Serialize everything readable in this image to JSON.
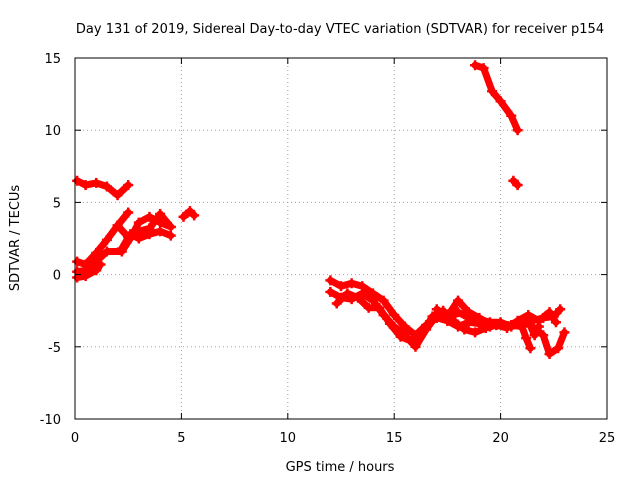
{
  "chart_data": {
    "type": "scatter",
    "title": "Day 131 of 2019, Sidereal Day-to-day VTEC variation (SDTVAR) for receiver p154",
    "xlabel": "GPS time / hours",
    "ylabel": "SDTVAR / TECUs",
    "xlim": [
      0,
      25
    ],
    "ylim": [
      -10,
      15
    ],
    "grid": true,
    "xticks": [
      "0",
      "5",
      "10",
      "15",
      "20",
      "25"
    ],
    "yticks": [
      "15",
      "10",
      "5",
      "0",
      "-5",
      "-10"
    ],
    "series": [
      {
        "name": "SDTVAR",
        "color": "#ff0000",
        "segments": [
          [
            [
              0.1,
              6.5
            ],
            [
              0.5,
              6.2
            ],
            [
              1.0,
              6.35
            ],
            [
              1.5,
              6.1
            ],
            [
              2.0,
              5.5
            ],
            [
              2.5,
              6.2
            ]
          ],
          [
            [
              0.1,
              0.9
            ],
            [
              0.5,
              0.7
            ],
            [
              1.0,
              1.5
            ],
            [
              1.5,
              2.4
            ],
            [
              2.0,
              3.4
            ],
            [
              2.5,
              4.3
            ]
          ],
          [
            [
              0.1,
              0.2
            ],
            [
              0.5,
              0.3
            ],
            [
              1.0,
              0.9
            ],
            [
              1.5,
              1.6
            ],
            [
              2.2,
              1.6
            ],
            [
              2.6,
              2.5
            ],
            [
              3.0,
              3.6
            ],
            [
              3.5,
              4.0
            ],
            [
              4.0,
              3.6
            ],
            [
              4.5,
              3.3
            ]
          ],
          [
            [
              0.1,
              -0.2
            ],
            [
              0.5,
              -0.1
            ],
            [
              1.0,
              0.3
            ],
            [
              1.2,
              0.7
            ]
          ],
          [
            [
              2.0,
              3.4
            ],
            [
              2.5,
              2.6
            ],
            [
              3.0,
              3.0
            ],
            [
              3.5,
              3.2
            ],
            [
              4.0,
              4.2
            ],
            [
              4.5,
              3.3
            ]
          ],
          [
            [
              2.2,
              1.8
            ],
            [
              2.6,
              2.8
            ],
            [
              3.0,
              2.5
            ],
            [
              3.5,
              2.8
            ],
            [
              4.0,
              3.0
            ],
            [
              4.5,
              2.7
            ]
          ],
          [
            [
              5.1,
              4.0
            ],
            [
              5.4,
              4.4
            ],
            [
              5.6,
              4.1
            ]
          ],
          [
            [
              18.8,
              14.5
            ],
            [
              19.2,
              14.3
            ],
            [
              19.6,
              12.7
            ],
            [
              20.0,
              12.0
            ],
            [
              20.5,
              11.0
            ],
            [
              20.8,
              10.0
            ]
          ],
          [
            [
              20.6,
              6.5
            ],
            [
              20.8,
              6.2
            ]
          ],
          [
            [
              12.0,
              -0.4
            ],
            [
              12.5,
              -0.8
            ],
            [
              13.0,
              -0.6
            ],
            [
              13.5,
              -0.8
            ],
            [
              14.0,
              -1.3
            ],
            [
              14.5,
              -1.8
            ],
            [
              15.0,
              -2.8
            ],
            [
              15.5,
              -3.6
            ],
            [
              16.0,
              -4.2
            ],
            [
              16.5,
              -3.5
            ],
            [
              17.0,
              -3.0
            ],
            [
              17.5,
              -3.2
            ],
            [
              18.0,
              -2.6
            ],
            [
              18.5,
              -3.0
            ],
            [
              19.0,
              -3.1
            ],
            [
              19.5,
              -3.3
            ],
            [
              20.0,
              -3.3
            ],
            [
              20.5,
              -3.6
            ],
            [
              21.0,
              -3.4
            ],
            [
              21.5,
              -3.2
            ],
            [
              22.0,
              -3.0
            ],
            [
              22.5,
              -2.9
            ],
            [
              22.8,
              -2.4
            ]
          ],
          [
            [
              12.0,
              -1.2
            ],
            [
              12.5,
              -1.6
            ],
            [
              13.0,
              -1.7
            ],
            [
              13.5,
              -1.3
            ],
            [
              14.0,
              -1.8
            ],
            [
              14.5,
              -2.8
            ],
            [
              15.0,
              -3.6
            ],
            [
              15.5,
              -4.2
            ],
            [
              16.0,
              -5.0
            ],
            [
              16.5,
              -3.8
            ],
            [
              17.0,
              -2.8
            ],
            [
              17.5,
              -3.2
            ],
            [
              18.0,
              -3.6
            ],
            [
              18.5,
              -3.3
            ],
            [
              19.0,
              -3.4
            ],
            [
              19.5,
              -3.6
            ],
            [
              20.0,
              -3.4
            ],
            [
              20.5,
              -3.5
            ],
            [
              21.0,
              -3.2
            ],
            [
              21.5,
              -3.6
            ],
            [
              22.0,
              -4.2
            ],
            [
              22.3,
              -5.5
            ],
            [
              22.7,
              -5.1
            ],
            [
              23.0,
              -4.0
            ]
          ],
          [
            [
              12.3,
              -2.0
            ],
            [
              12.8,
              -1.3
            ],
            [
              13.3,
              -1.6
            ],
            [
              13.8,
              -2.3
            ],
            [
              14.3,
              -2.3
            ],
            [
              14.8,
              -3.4
            ],
            [
              15.3,
              -4.3
            ],
            [
              15.8,
              -4.6
            ],
            [
              16.3,
              -4.1
            ],
            [
              16.8,
              -2.9
            ],
            [
              17.3,
              -2.5
            ],
            [
              17.8,
              -3.2
            ],
            [
              18.3,
              -3.8
            ],
            [
              18.8,
              -4.0
            ],
            [
              19.3,
              -3.7
            ],
            [
              19.8,
              -3.5
            ],
            [
              20.3,
              -3.7
            ],
            [
              20.8,
              -3.2
            ],
            [
              21.3,
              -2.8
            ],
            [
              21.8,
              -3.2
            ],
            [
              22.3,
              -2.6
            ],
            [
              22.6,
              -3.3
            ]
          ],
          [
            [
              17.0,
              -2.4
            ],
            [
              17.5,
              -2.9
            ],
            [
              18.0,
              -1.8
            ],
            [
              18.5,
              -2.6
            ],
            [
              19.0,
              -3.0
            ],
            [
              19.5,
              -3.4
            ]
          ],
          [
            [
              21.3,
              -3.2
            ],
            [
              21.6,
              -4.2
            ],
            [
              21.8,
              -3.6
            ]
          ],
          [
            [
              20.5,
              -3.5
            ],
            [
              21.0,
              -3.6
            ],
            [
              21.2,
              -4.4
            ],
            [
              21.4,
              -5.1
            ]
          ]
        ]
      }
    ]
  }
}
